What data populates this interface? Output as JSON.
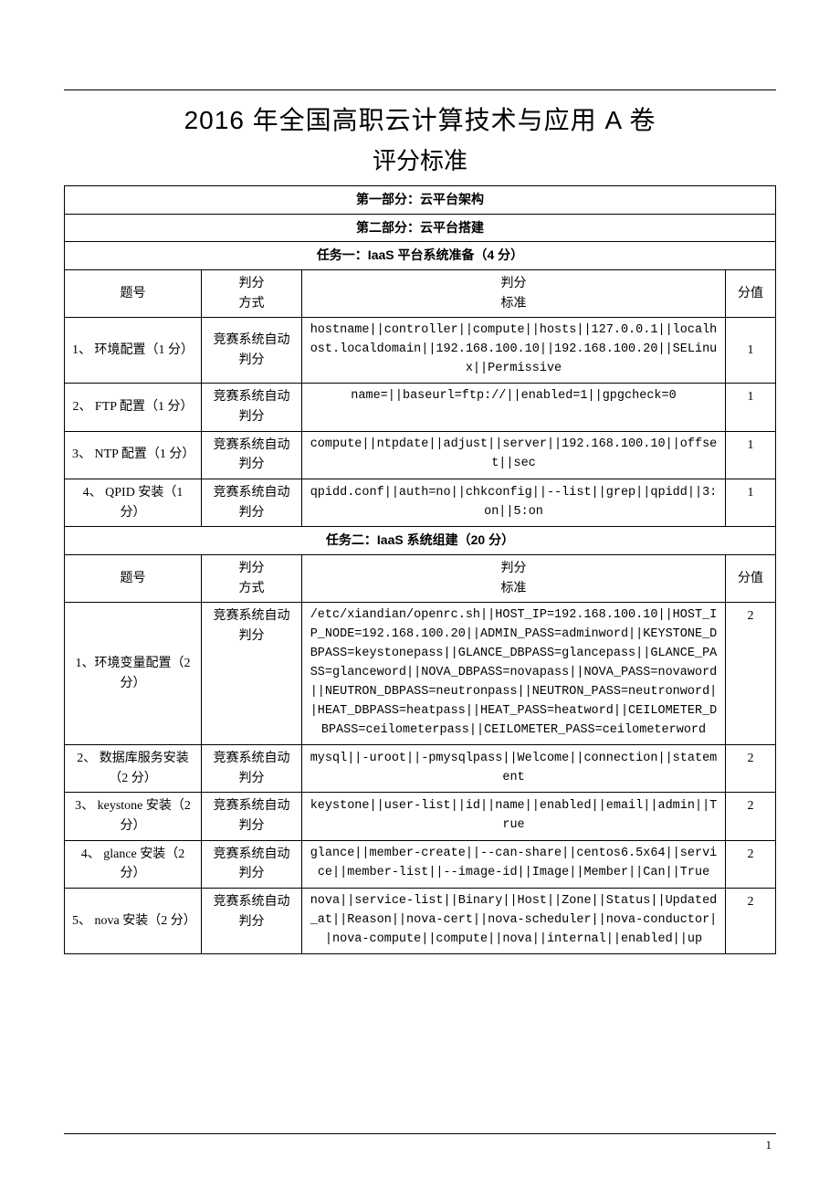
{
  "title": "2016 年全国高职云计算技术与应用 A 卷",
  "subtitle": "评分标准",
  "sections": {
    "part1": "第一部分：云平台架构",
    "part2": "第二部分：云平台搭建",
    "task1": "任务一：IaaS 平台系统准备（4 分）",
    "task2": "任务二：IaaS 系统组建（20 分）"
  },
  "headers": {
    "question": "题号",
    "method_l1": "判分",
    "method_l2": "方式",
    "standard_l1": "判分",
    "standard_l2": "标准",
    "points": "分值"
  },
  "method_text": "竞赛系统自动判分",
  "task1_rows": [
    {
      "q": "1、 环境配置（1 分）",
      "std": "hostname||controller||compute||hosts||127.0.0.1||localhost.localdomain||192.168.100.10||192.168.100.20||SELinux||Permissive",
      "pts": "1"
    },
    {
      "q": "2、 FTP 配置（1 分）",
      "std": "name=||baseurl=ftp://||enabled=1||gpgcheck=0",
      "pts": "1"
    },
    {
      "q": "3、 NTP 配置（1 分）",
      "std": "compute||ntpdate||adjust||server||192.168.100.10||offset||sec",
      "pts": "1"
    },
    {
      "q": "4、 QPID 安装（1 分）",
      "std": "qpidd.conf||auth=no||chkconfig||--list||grep||qpidd||3:on||5:on",
      "pts": "1"
    }
  ],
  "task2_rows": [
    {
      "q": "1、环境变量配置（2 分）",
      "std": "/etc/xiandian/openrc.sh||HOST_IP=192.168.100.10||HOST_IP_NODE=192.168.100.20||ADMIN_PASS=adminword||KEYSTONE_DBPASS=keystonepass||GLANCE_DBPASS=glancepass||GLANCE_PASS=glanceword||NOVA_DBPASS=novapass||NOVA_PASS=novaword||NEUTRON_DBPASS=neutronpass||NEUTRON_PASS=neutronword||HEAT_DBPASS=heatpass||HEAT_PASS=heatword||CEILOMETER_DBPASS=ceilometerpass||CEILOMETER_PASS=ceilometerword",
      "pts": "2"
    },
    {
      "q": "2、 数据库服务安装（2 分）",
      "std": "mysql||-uroot||-pmysqlpass||Welcome||connection||statement",
      "pts": "2"
    },
    {
      "q": "3、 keystone 安装（2 分）",
      "std": "keystone||user-list||id||name||enabled||email||admin||True",
      "pts": "2"
    },
    {
      "q": "4、 glance 安装（2 分）",
      "std": "glance||member-create||--can-share||centos6.5x64||service||member-list||--image-id||Image||Member||Can||True",
      "pts": "2"
    },
    {
      "q": "5、 nova 安装（2 分）",
      "std": "nova||service-list||Binary||Host||Zone||Status||Updated_at||Reason||nova-cert||nova-scheduler||nova-conductor||nova-compute||compute||nova||internal||enabled||up",
      "pts": "2"
    }
  ],
  "page_number": "1"
}
